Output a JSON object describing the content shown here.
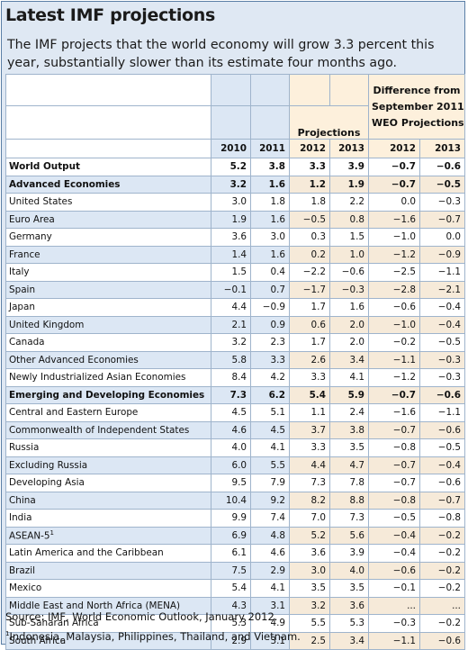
{
  "title": "Latest IMF projections",
  "subtitle": "The IMF projects that the world economy will grow 3.3 percent this year, substantially slower than its estimate four months ago.",
  "header": {
    "projections": "Projections",
    "difference_line1": "Difference from",
    "difference_line2": "September 2011",
    "difference_line3": "WEO Projections",
    "years": [
      "2010",
      "2011",
      "2012",
      "2013",
      "2012",
      "2013"
    ]
  },
  "rows": [
    {
      "name": "World Output",
      "bold": true,
      "v": [
        "5.2",
        "3.8",
        "3.3",
        "3.9",
        "−0.7",
        "−0.6"
      ]
    },
    {
      "name": "Advanced Economies",
      "bold": true,
      "v": [
        "3.2",
        "1.6",
        "1.2",
        "1.9",
        "−0.7",
        "−0.5"
      ]
    },
    {
      "name": "United States",
      "v": [
        "3.0",
        "1.8",
        "1.8",
        "2.2",
        "0.0",
        "−0.3"
      ]
    },
    {
      "name": "Euro Area",
      "v": [
        "1.9",
        "1.6",
        "−0.5",
        "0.8",
        "−1.6",
        "−0.7"
      ]
    },
    {
      "name": "Germany",
      "v": [
        "3.6",
        "3.0",
        "0.3",
        "1.5",
        "−1.0",
        "0.0"
      ]
    },
    {
      "name": "France",
      "v": [
        "1.4",
        "1.6",
        "0.2",
        "1.0",
        "−1.2",
        "−0.9"
      ]
    },
    {
      "name": "Italy",
      "v": [
        "1.5",
        "0.4",
        "−2.2",
        "−0.6",
        "−2.5",
        "−1.1"
      ]
    },
    {
      "name": "Spain",
      "v": [
        "−0.1",
        "0.7",
        "−1.7",
        "−0.3",
        "−2.8",
        "−2.1"
      ]
    },
    {
      "name": "Japan",
      "v": [
        "4.4",
        "−0.9",
        "1.7",
        "1.6",
        "−0.6",
        "−0.4"
      ]
    },
    {
      "name": "United Kingdom",
      "v": [
        "2.1",
        "0.9",
        "0.6",
        "2.0",
        "−1.0",
        "−0.4"
      ]
    },
    {
      "name": "Canada",
      "v": [
        "3.2",
        "2.3",
        "1.7",
        "2.0",
        "−0.2",
        "−0.5"
      ]
    },
    {
      "name": "Other Advanced Economies",
      "v": [
        "5.8",
        "3.3",
        "2.6",
        "3.4",
        "−1.1",
        "−0.3"
      ]
    },
    {
      "name": "Newly Industrialized Asian Economies",
      "v": [
        "8.4",
        "4.2",
        "3.3",
        "4.1",
        "−1.2",
        "−0.3"
      ]
    },
    {
      "name": "Emerging and Developing Economies",
      "bold": true,
      "v": [
        "7.3",
        "6.2",
        "5.4",
        "5.9",
        "−0.7",
        "−0.6"
      ]
    },
    {
      "name": "Central and Eastern Europe",
      "v": [
        "4.5",
        "5.1",
        "1.1",
        "2.4",
        "−1.6",
        "−1.1"
      ]
    },
    {
      "name": "Commonwealth of Independent States",
      "v": [
        "4.6",
        "4.5",
        "3.7",
        "3.8",
        "−0.7",
        "−0.6"
      ]
    },
    {
      "name": "Russia",
      "v": [
        "4.0",
        "4.1",
        "3.3",
        "3.5",
        "−0.8",
        "−0.5"
      ]
    },
    {
      "name": "Excluding Russia",
      "v": [
        "6.0",
        "5.5",
        "4.4",
        "4.7",
        "−0.7",
        "−0.4"
      ]
    },
    {
      "name": "Developing Asia",
      "v": [
        "9.5",
        "7.9",
        "7.3",
        "7.8",
        "−0.7",
        "−0.6"
      ]
    },
    {
      "name": "China",
      "v": [
        "10.4",
        "9.2",
        "8.2",
        "8.8",
        "−0.8",
        "−0.7"
      ]
    },
    {
      "name": "India",
      "v": [
        "9.9",
        "7.4",
        "7.0",
        "7.3",
        "−0.5",
        "−0.8"
      ]
    },
    {
      "name": "ASEAN-5",
      "sup": "1",
      "v": [
        "6.9",
        "4.8",
        "5.2",
        "5.6",
        "−0.4",
        "−0.2"
      ]
    },
    {
      "name": "Latin America and the Caribbean",
      "v": [
        "6.1",
        "4.6",
        "3.6",
        "3.9",
        "−0.4",
        "−0.2"
      ]
    },
    {
      "name": "Brazil",
      "v": [
        "7.5",
        "2.9",
        "3.0",
        "4.0",
        "−0.6",
        "−0.2"
      ]
    },
    {
      "name": "Mexico",
      "v": [
        "5.4",
        "4.1",
        "3.5",
        "3.5",
        "−0.1",
        "−0.2"
      ]
    },
    {
      "name": "Middle East and North Africa (MENA)",
      "v": [
        "4.3",
        "3.1",
        "3.2",
        "3.6",
        "...",
        "..."
      ]
    },
    {
      "name": "Sub-Saharan Africa",
      "v": [
        "5.3",
        "4.9",
        "5.5",
        "5.3",
        "−0.3",
        "−0.2"
      ]
    },
    {
      "name": "South Africa",
      "v": [
        "2.9",
        "3.1",
        "2.5",
        "3.4",
        "−1.1",
        "−0.6"
      ]
    }
  ],
  "source": "Source: IMF, World Economic Outlook, January 2012.",
  "footnote_mark": "1",
  "footnote": "Indonesia, Malaysia, Philippines, Thailand, and Vietnam."
}
